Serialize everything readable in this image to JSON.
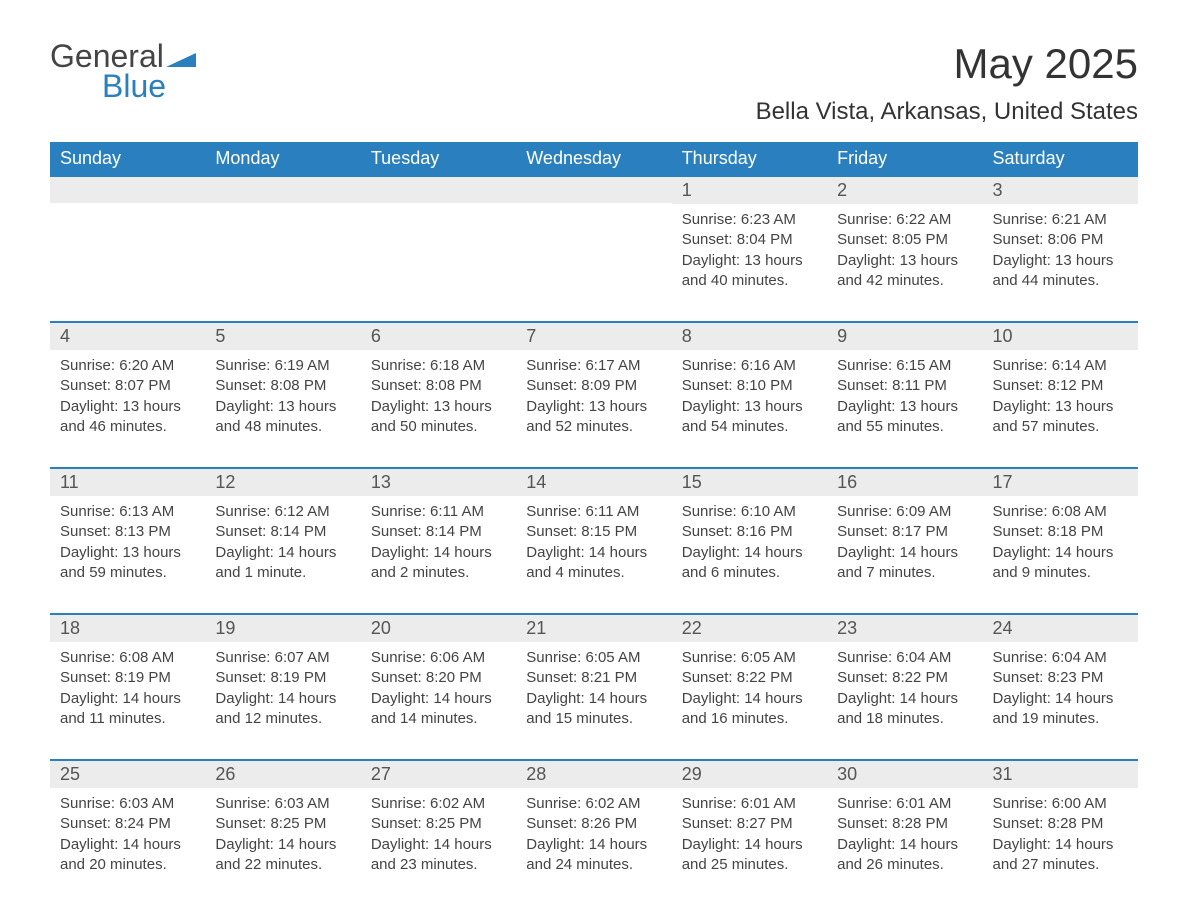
{
  "logo": {
    "word1": "General",
    "word2": "Blue"
  },
  "title": "May 2025",
  "subtitle": "Bella Vista, Arkansas, United States",
  "colors": {
    "header_bg": "#2a7fbf",
    "header_text": "#ffffff",
    "daynum_bg": "#ececec",
    "text": "#444444",
    "row_border": "#2a7fbf",
    "logo_gray": "#444444",
    "logo_blue": "#2a7fbf",
    "background": "#ffffff"
  },
  "typography": {
    "title_fontsize": 42,
    "subtitle_fontsize": 24,
    "header_fontsize": 18,
    "daynum_fontsize": 18,
    "body_fontsize": 15
  },
  "weekdays": [
    "Sunday",
    "Monday",
    "Tuesday",
    "Wednesday",
    "Thursday",
    "Friday",
    "Saturday"
  ],
  "weeks": [
    [
      {
        "day": "",
        "sunrise": "",
        "sunset": "",
        "daylight": ""
      },
      {
        "day": "",
        "sunrise": "",
        "sunset": "",
        "daylight": ""
      },
      {
        "day": "",
        "sunrise": "",
        "sunset": "",
        "daylight": ""
      },
      {
        "day": "",
        "sunrise": "",
        "sunset": "",
        "daylight": ""
      },
      {
        "day": "1",
        "sunrise": "Sunrise: 6:23 AM",
        "sunset": "Sunset: 8:04 PM",
        "daylight": "Daylight: 13 hours and 40 minutes."
      },
      {
        "day": "2",
        "sunrise": "Sunrise: 6:22 AM",
        "sunset": "Sunset: 8:05 PM",
        "daylight": "Daylight: 13 hours and 42 minutes."
      },
      {
        "day": "3",
        "sunrise": "Sunrise: 6:21 AM",
        "sunset": "Sunset: 8:06 PM",
        "daylight": "Daylight: 13 hours and 44 minutes."
      }
    ],
    [
      {
        "day": "4",
        "sunrise": "Sunrise: 6:20 AM",
        "sunset": "Sunset: 8:07 PM",
        "daylight": "Daylight: 13 hours and 46 minutes."
      },
      {
        "day": "5",
        "sunrise": "Sunrise: 6:19 AM",
        "sunset": "Sunset: 8:08 PM",
        "daylight": "Daylight: 13 hours and 48 minutes."
      },
      {
        "day": "6",
        "sunrise": "Sunrise: 6:18 AM",
        "sunset": "Sunset: 8:08 PM",
        "daylight": "Daylight: 13 hours and 50 minutes."
      },
      {
        "day": "7",
        "sunrise": "Sunrise: 6:17 AM",
        "sunset": "Sunset: 8:09 PM",
        "daylight": "Daylight: 13 hours and 52 minutes."
      },
      {
        "day": "8",
        "sunrise": "Sunrise: 6:16 AM",
        "sunset": "Sunset: 8:10 PM",
        "daylight": "Daylight: 13 hours and 54 minutes."
      },
      {
        "day": "9",
        "sunrise": "Sunrise: 6:15 AM",
        "sunset": "Sunset: 8:11 PM",
        "daylight": "Daylight: 13 hours and 55 minutes."
      },
      {
        "day": "10",
        "sunrise": "Sunrise: 6:14 AM",
        "sunset": "Sunset: 8:12 PM",
        "daylight": "Daylight: 13 hours and 57 minutes."
      }
    ],
    [
      {
        "day": "11",
        "sunrise": "Sunrise: 6:13 AM",
        "sunset": "Sunset: 8:13 PM",
        "daylight": "Daylight: 13 hours and 59 minutes."
      },
      {
        "day": "12",
        "sunrise": "Sunrise: 6:12 AM",
        "sunset": "Sunset: 8:14 PM",
        "daylight": "Daylight: 14 hours and 1 minute."
      },
      {
        "day": "13",
        "sunrise": "Sunrise: 6:11 AM",
        "sunset": "Sunset: 8:14 PM",
        "daylight": "Daylight: 14 hours and 2 minutes."
      },
      {
        "day": "14",
        "sunrise": "Sunrise: 6:11 AM",
        "sunset": "Sunset: 8:15 PM",
        "daylight": "Daylight: 14 hours and 4 minutes."
      },
      {
        "day": "15",
        "sunrise": "Sunrise: 6:10 AM",
        "sunset": "Sunset: 8:16 PM",
        "daylight": "Daylight: 14 hours and 6 minutes."
      },
      {
        "day": "16",
        "sunrise": "Sunrise: 6:09 AM",
        "sunset": "Sunset: 8:17 PM",
        "daylight": "Daylight: 14 hours and 7 minutes."
      },
      {
        "day": "17",
        "sunrise": "Sunrise: 6:08 AM",
        "sunset": "Sunset: 8:18 PM",
        "daylight": "Daylight: 14 hours and 9 minutes."
      }
    ],
    [
      {
        "day": "18",
        "sunrise": "Sunrise: 6:08 AM",
        "sunset": "Sunset: 8:19 PM",
        "daylight": "Daylight: 14 hours and 11 minutes."
      },
      {
        "day": "19",
        "sunrise": "Sunrise: 6:07 AM",
        "sunset": "Sunset: 8:19 PM",
        "daylight": "Daylight: 14 hours and 12 minutes."
      },
      {
        "day": "20",
        "sunrise": "Sunrise: 6:06 AM",
        "sunset": "Sunset: 8:20 PM",
        "daylight": "Daylight: 14 hours and 14 minutes."
      },
      {
        "day": "21",
        "sunrise": "Sunrise: 6:05 AM",
        "sunset": "Sunset: 8:21 PM",
        "daylight": "Daylight: 14 hours and 15 minutes."
      },
      {
        "day": "22",
        "sunrise": "Sunrise: 6:05 AM",
        "sunset": "Sunset: 8:22 PM",
        "daylight": "Daylight: 14 hours and 16 minutes."
      },
      {
        "day": "23",
        "sunrise": "Sunrise: 6:04 AM",
        "sunset": "Sunset: 8:22 PM",
        "daylight": "Daylight: 14 hours and 18 minutes."
      },
      {
        "day": "24",
        "sunrise": "Sunrise: 6:04 AM",
        "sunset": "Sunset: 8:23 PM",
        "daylight": "Daylight: 14 hours and 19 minutes."
      }
    ],
    [
      {
        "day": "25",
        "sunrise": "Sunrise: 6:03 AM",
        "sunset": "Sunset: 8:24 PM",
        "daylight": "Daylight: 14 hours and 20 minutes."
      },
      {
        "day": "26",
        "sunrise": "Sunrise: 6:03 AM",
        "sunset": "Sunset: 8:25 PM",
        "daylight": "Daylight: 14 hours and 22 minutes."
      },
      {
        "day": "27",
        "sunrise": "Sunrise: 6:02 AM",
        "sunset": "Sunset: 8:25 PM",
        "daylight": "Daylight: 14 hours and 23 minutes."
      },
      {
        "day": "28",
        "sunrise": "Sunrise: 6:02 AM",
        "sunset": "Sunset: 8:26 PM",
        "daylight": "Daylight: 14 hours and 24 minutes."
      },
      {
        "day": "29",
        "sunrise": "Sunrise: 6:01 AM",
        "sunset": "Sunset: 8:27 PM",
        "daylight": "Daylight: 14 hours and 25 minutes."
      },
      {
        "day": "30",
        "sunrise": "Sunrise: 6:01 AM",
        "sunset": "Sunset: 8:28 PM",
        "daylight": "Daylight: 14 hours and 26 minutes."
      },
      {
        "day": "31",
        "sunrise": "Sunrise: 6:00 AM",
        "sunset": "Sunset: 8:28 PM",
        "daylight": "Daylight: 14 hours and 27 minutes."
      }
    ]
  ]
}
